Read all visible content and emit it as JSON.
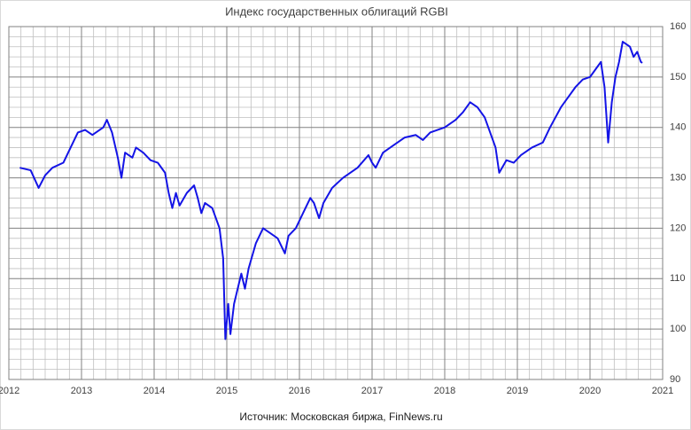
{
  "chart_data": {
    "type": "line",
    "title": "Индекс государственных облигаций RGBI",
    "source": "Источник: Московская биржа, FinNews.ru",
    "xlim": [
      2012,
      2021
    ],
    "xticks": [
      2012,
      2013,
      2014,
      2015,
      2016,
      2017,
      2018,
      2019,
      2020,
      2021
    ],
    "ylim": [
      90,
      160
    ],
    "yticks": [
      90,
      100,
      110,
      120,
      130,
      140,
      150,
      160
    ],
    "grid": true,
    "series": [
      {
        "color": "#1414e6",
        "x": [
          2012.15,
          2012.3,
          2012.41,
          2012.5,
          2012.6,
          2012.75,
          2012.85,
          2012.95,
          2013.05,
          2013.15,
          2013.3,
          2013.35,
          2013.42,
          2013.5,
          2013.55,
          2013.6,
          2013.7,
          2013.75,
          2013.85,
          2013.95,
          2014.05,
          2014.15,
          2014.2,
          2014.25,
          2014.3,
          2014.35,
          2014.45,
          2014.55,
          2014.6,
          2014.65,
          2014.7,
          2014.8,
          2014.85,
          2014.9,
          2014.95,
          2014.98,
          2015.02,
          2015.05,
          2015.1,
          2015.15,
          2015.2,
          2015.25,
          2015.3,
          2015.4,
          2015.5,
          2015.6,
          2015.7,
          2015.8,
          2015.85,
          2015.95,
          2016.05,
          2016.15,
          2016.2,
          2016.27,
          2016.33,
          2016.45,
          2016.6,
          2016.8,
          2016.95,
          2017.0,
          2017.05,
          2017.15,
          2017.3,
          2017.45,
          2017.6,
          2017.7,
          2017.8,
          2018.0,
          2018.15,
          2018.25,
          2018.35,
          2018.45,
          2018.55,
          2018.6,
          2018.7,
          2018.75,
          2018.85,
          2018.95,
          2019.05,
          2019.2,
          2019.35,
          2019.45,
          2019.6,
          2019.7,
          2019.8,
          2019.9,
          2020.0,
          2020.1,
          2020.15,
          2020.2,
          2020.25,
          2020.3,
          2020.35,
          2020.4,
          2020.45,
          2020.55,
          2020.6,
          2020.65,
          2020.7,
          2020.72
        ],
        "values": [
          132,
          131.5,
          128,
          130.5,
          132,
          133,
          136,
          139,
          139.5,
          138.5,
          140,
          141.5,
          139,
          134,
          130,
          135,
          134,
          136,
          135,
          133.5,
          133,
          131,
          127,
          124,
          127,
          124.5,
          127,
          128.5,
          126,
          123,
          125,
          124,
          122,
          120,
          114,
          98,
          105,
          99,
          105,
          108,
          111,
          108,
          112,
          117,
          120,
          119,
          118,
          115,
          118.5,
          120,
          123,
          126,
          125,
          122,
          125,
          128,
          130,
          132,
          134.5,
          133,
          132,
          135,
          136.5,
          138,
          138.5,
          137.5,
          139,
          140,
          141.5,
          143,
          145,
          144,
          142,
          140,
          136,
          131,
          133.5,
          133,
          134.5,
          136,
          137,
          140,
          144,
          146,
          148,
          149.5,
          150,
          152,
          153,
          148,
          137,
          145,
          150,
          153,
          157,
          156,
          154,
          155,
          153,
          152.8
        ]
      }
    ]
  }
}
